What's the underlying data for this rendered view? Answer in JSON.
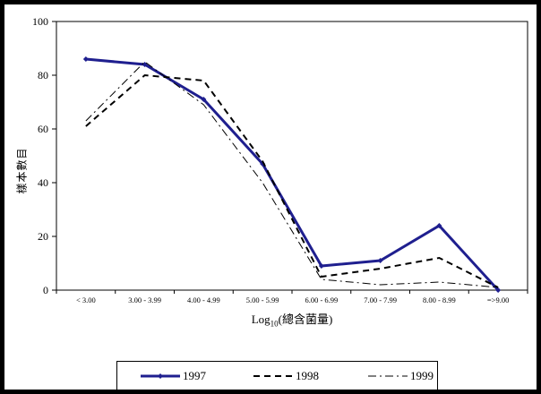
{
  "chart_data": {
    "type": "line",
    "title": "",
    "ylabel": "樣本數目",
    "xlabel": {
      "prefix": "Log",
      "sub": "10",
      "suffix": "(總含菌量)"
    },
    "ylim": [
      0,
      100
    ],
    "y_ticks": [
      "0",
      "20",
      "40",
      "60",
      "80",
      "100"
    ],
    "categories": [
      "< 3.00",
      "3.00 - 3.99",
      "4.00 - 4.99",
      "5.00 - 5.99",
      "6.00 - 6.99",
      "7.00 - 7.99",
      "8.00 - 8.99",
      "=>9.00"
    ],
    "series": [
      {
        "name": "1997",
        "values": [
          86,
          84,
          71,
          47,
          9,
          11,
          24,
          0
        ],
        "color": "#1f1f8f",
        "style": "solid",
        "width": 3,
        "marker": "diamond"
      },
      {
        "name": "1998",
        "values": [
          61,
          80,
          78,
          48,
          5,
          8,
          12,
          1
        ],
        "color": "#000000",
        "style": "dashed",
        "width": 2,
        "marker": "none"
      },
      {
        "name": "1999",
        "values": [
          63,
          85,
          69,
          40,
          4,
          2,
          3,
          1
        ],
        "color": "#000000",
        "style": "dashdot",
        "width": 1,
        "marker": "none"
      }
    ],
    "grid": false,
    "legend_position": "bottom"
  }
}
